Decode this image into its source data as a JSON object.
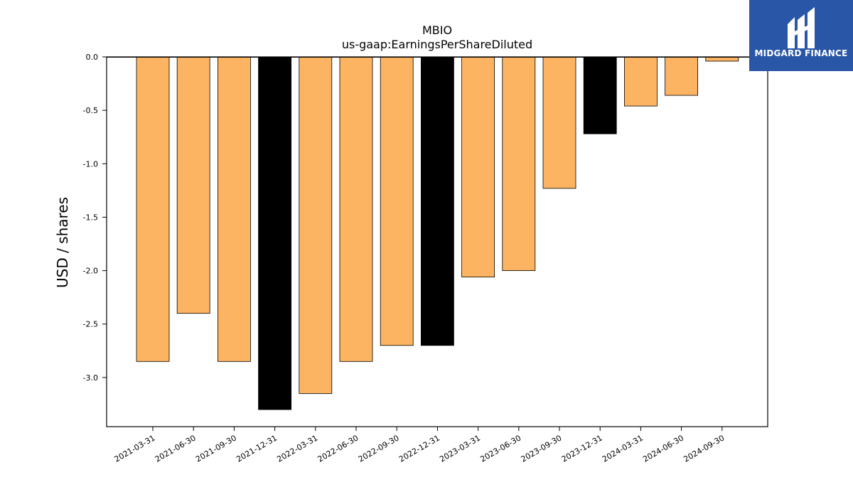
{
  "chart_data": {
    "type": "bar",
    "title": "MBIO",
    "subtitle": "us-gaap:EarningsPerShareDiluted",
    "ylabel": "USD / shares",
    "xlabel": "",
    "ylim": [
      -3.46,
      0.0
    ],
    "yticks": [
      0.0,
      -0.5,
      -1.0,
      -1.5,
      -2.0,
      -2.5,
      -3.0
    ],
    "categories": [
      "2021-03-31",
      "2021-06-30",
      "2021-09-30",
      "2021-12-31",
      "2022-03-31",
      "2022-06-30",
      "2022-09-30",
      "2022-12-31",
      "2023-03-31",
      "2023-06-30",
      "2023-09-30",
      "2023-12-31",
      "2024-03-31",
      "2024-06-30",
      "2024-09-30"
    ],
    "values": [
      -2.85,
      -2.4,
      -2.85,
      -3.3,
      -3.15,
      -2.85,
      -2.7,
      -2.7,
      -2.06,
      -2.0,
      -1.23,
      -0.72,
      -0.46,
      -0.36,
      -0.04
    ],
    "bar_colors": [
      "#fdb462",
      "#fdb462",
      "#fdb462",
      "#000000",
      "#fdb462",
      "#fdb462",
      "#fdb462",
      "#000000",
      "#fdb462",
      "#fdb462",
      "#fdb462",
      "#000000",
      "#fdb462",
      "#fdb462",
      "#fdb462"
    ],
    "grid": false,
    "legend": "none"
  },
  "brand": {
    "name": "MIDGARD FINANCE",
    "color": "#2a56a8",
    "icon": "midgard-logo-icon"
  }
}
